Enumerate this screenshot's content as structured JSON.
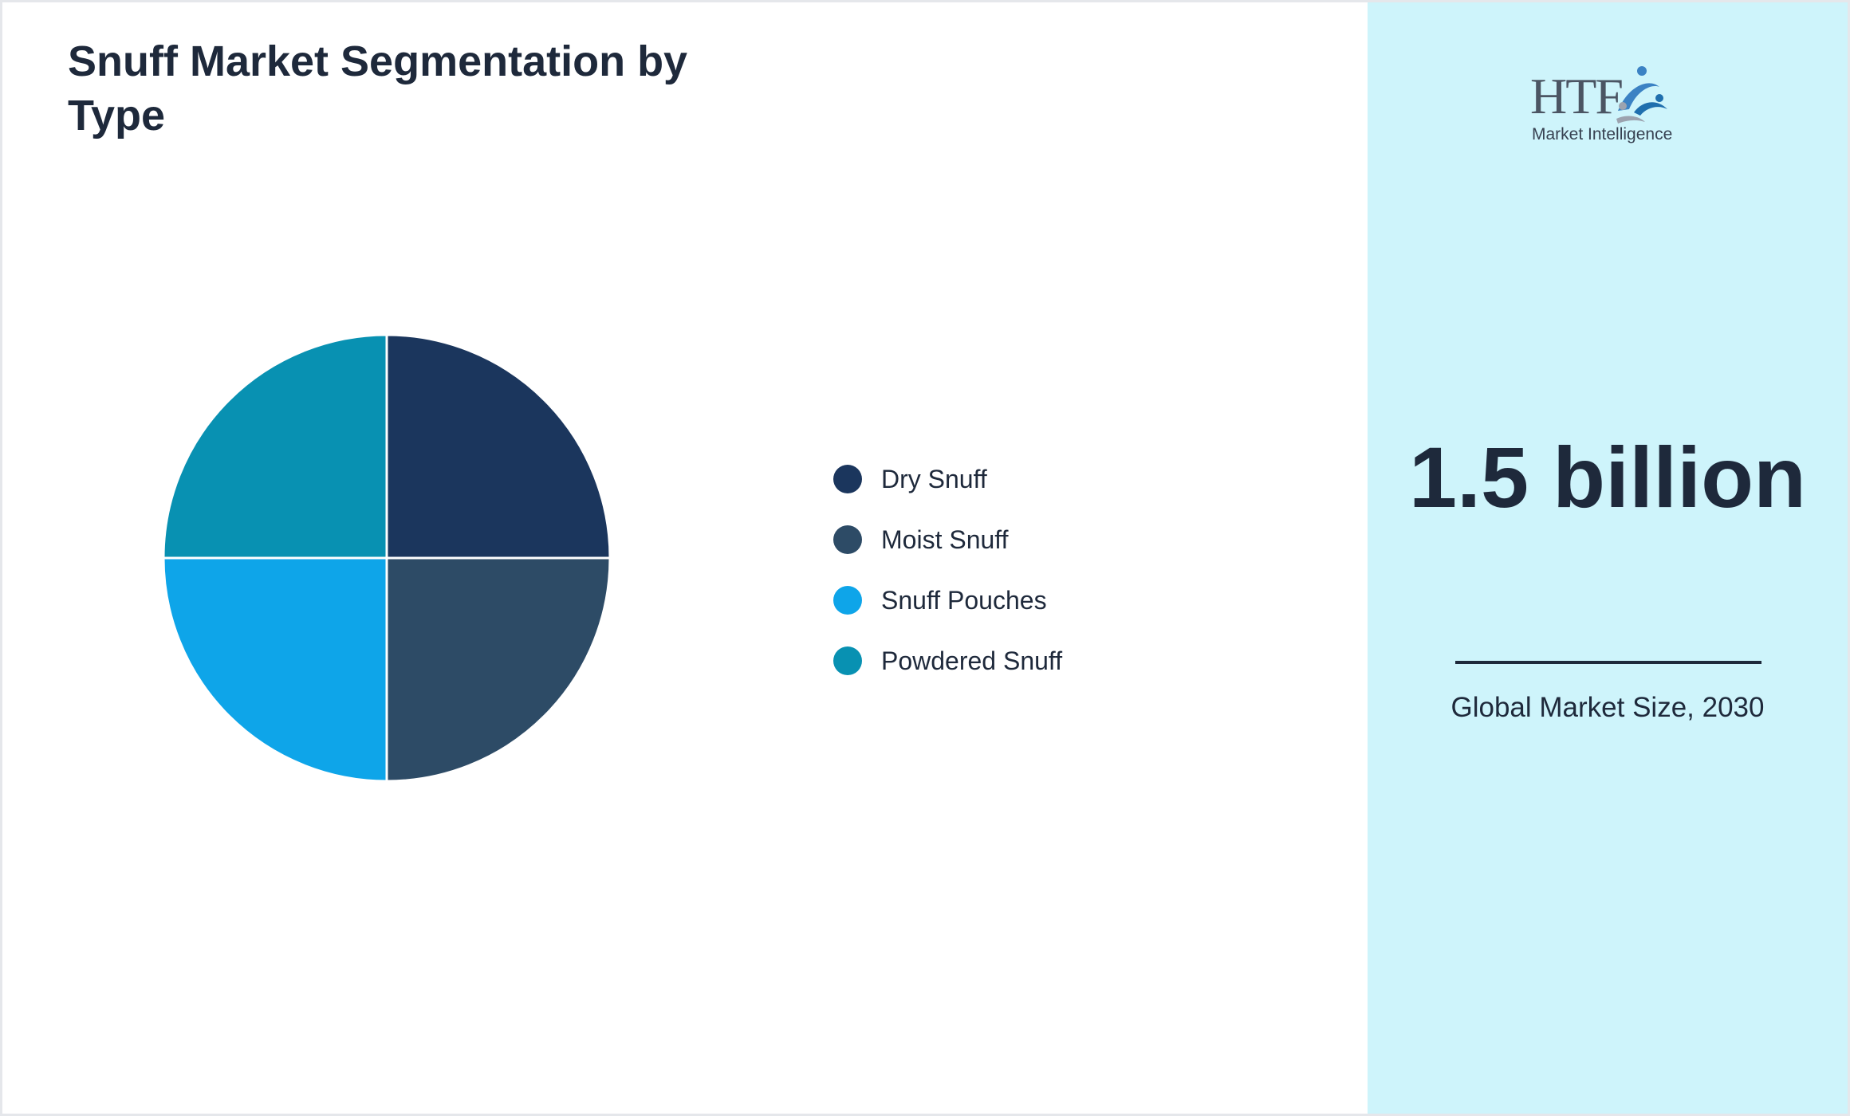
{
  "title": "Snuff Market Segmentation by Type",
  "chart_data": {
    "type": "pie",
    "title": "Snuff Market Segmentation by Type",
    "categories": [
      "Dry Snuff",
      "Moist Snuff",
      "Snuff Pouches",
      "Powdered Snuff"
    ],
    "values": [
      25,
      25,
      25,
      25
    ],
    "colors": [
      "#1b365d",
      "#2d4b66",
      "#0ea5e9",
      "#0891b2"
    ],
    "legend_position": "right"
  },
  "legend": {
    "items": [
      {
        "label": "Dry Snuff",
        "color": "#1b365d"
      },
      {
        "label": "Moist Snuff",
        "color": "#2d4b66"
      },
      {
        "label": "Snuff Pouches",
        "color": "#0ea5e9"
      },
      {
        "label": "Powdered Snuff",
        "color": "#0891b2"
      }
    ]
  },
  "sidebar": {
    "logo": {
      "text": "HTF",
      "subtitle": "Market Intelligence"
    },
    "kpi": {
      "value": "1.5 billion",
      "caption": "Global Market Size, 2030"
    },
    "background_color": "#cef4fb"
  }
}
